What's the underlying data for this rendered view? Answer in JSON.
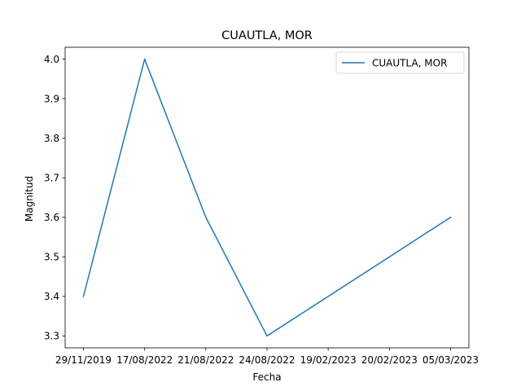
{
  "chart_data": {
    "type": "line",
    "title": "CUAUTLA, MOR",
    "xlabel": "Fecha",
    "ylabel": "Magnitud",
    "categories": [
      "29/11/2019",
      "17/08/2022",
      "21/08/2022",
      "24/08/2022",
      "19/02/2023",
      "20/02/2023",
      "05/03/2023"
    ],
    "series": [
      {
        "name": "CUAUTLA, MOR",
        "values": [
          3.4,
          4.0,
          3.6,
          3.3,
          3.4,
          3.5,
          3.6
        ],
        "color": "#1f77b4"
      }
    ],
    "ylim": [
      3.27,
      4.03
    ],
    "yticks": [
      "3.3",
      "3.4",
      "3.5",
      "3.6",
      "3.7",
      "3.8",
      "3.9",
      "4.0"
    ],
    "grid": false,
    "legend_position": "top-right"
  }
}
